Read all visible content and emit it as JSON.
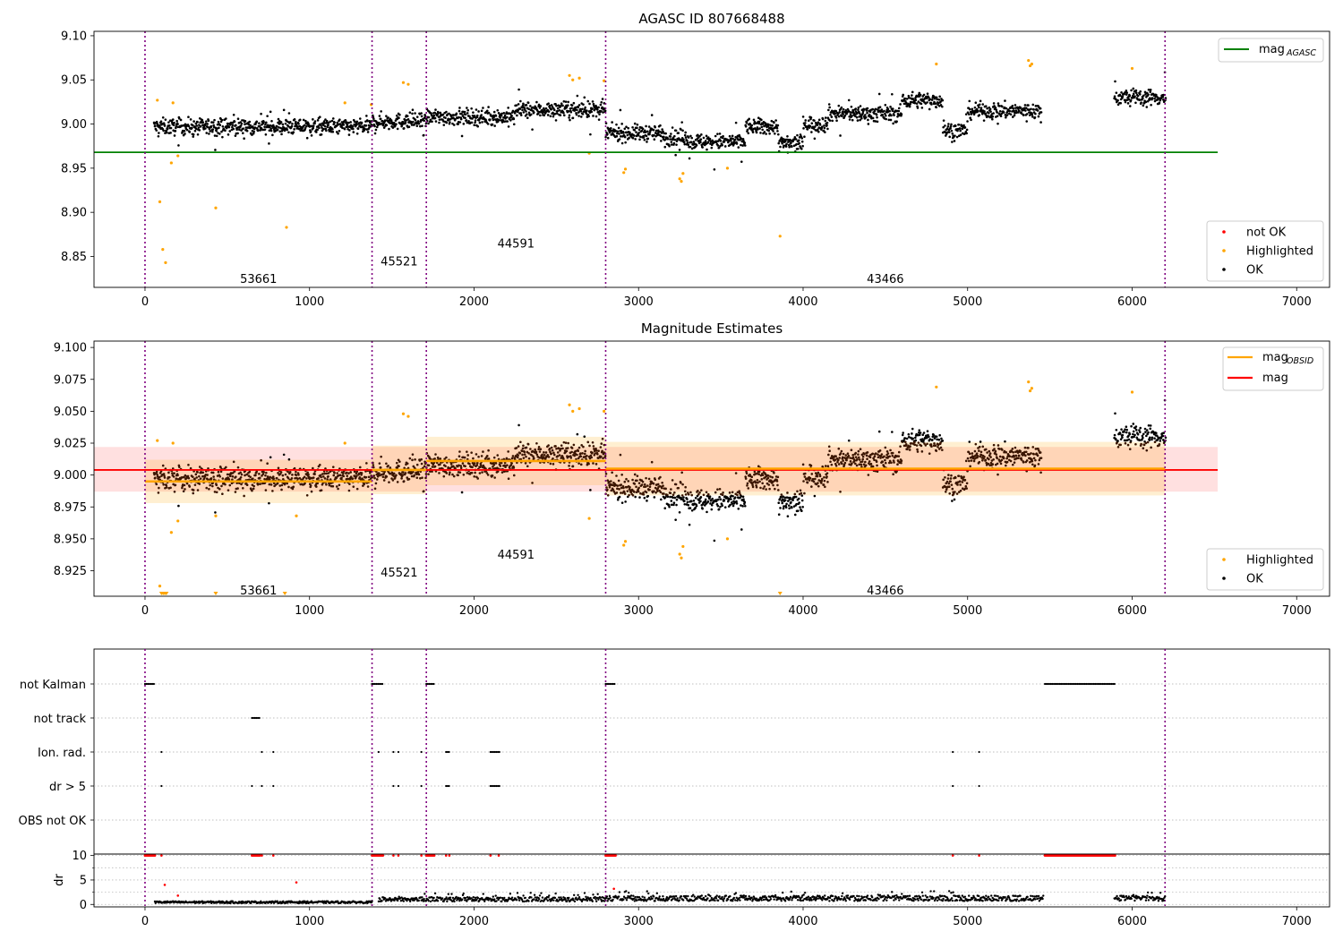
{
  "chart_data": [
    {
      "panel": "top",
      "type": "scatter",
      "title": "AGASC ID 807668488",
      "xlim": [
        -310,
        7200
      ],
      "ylim": [
        8.815,
        9.105
      ],
      "xticks": [
        0,
        1000,
        2000,
        3000,
        4000,
        5000,
        6000,
        7000
      ],
      "yticks": [
        8.85,
        8.9,
        8.95,
        9.0,
        9.05,
        9.1
      ],
      "ytick_labels": [
        "8.85",
        "8.90",
        "8.95",
        "9.00",
        "9.05",
        "9.10"
      ],
      "obsid_boundaries": [
        0,
        1380,
        1710,
        2800,
        6200
      ],
      "obsid_labels": [
        {
          "text": "53661",
          "x": 690,
          "y": 8.825
        },
        {
          "text": "45521",
          "x": 1545,
          "y": 8.845
        },
        {
          "text": "44591",
          "x": 2255,
          "y": 8.865
        },
        {
          "text": "43466",
          "x": 4500,
          "y": 8.825
        }
      ],
      "lines": [
        {
          "name": "mag_AGASC",
          "color": "#008000",
          "y": 8.968,
          "x": [
            -310,
            6520
          ]
        }
      ],
      "legend_lines": [
        {
          "main": "mag",
          "sub": "AGASC",
          "color": "#008000"
        }
      ],
      "legend_points": [
        {
          "label": "not OK",
          "color": "#ff0000"
        },
        {
          "label": "Highlighted",
          "color": "#ffa500"
        },
        {
          "label": "OK",
          "color": "#000000"
        }
      ],
      "highlighted": [
        [
          75,
          9.027
        ],
        [
          90,
          8.912
        ],
        [
          108,
          8.858
        ],
        [
          125,
          8.843
        ],
        [
          160,
          8.956
        ],
        [
          170,
          9.024
        ],
        [
          200,
          8.964
        ],
        [
          430,
          8.905
        ],
        [
          860,
          8.883
        ],
        [
          1215,
          9.024
        ],
        [
          1375,
          9.022
        ],
        [
          1570,
          9.047
        ],
        [
          1600,
          9.045
        ],
        [
          2580,
          9.055
        ],
        [
          2600,
          9.05
        ],
        [
          2640,
          9.052
        ],
        [
          2700,
          8.967
        ],
        [
          2790,
          9.049
        ],
        [
          2910,
          8.945
        ],
        [
          2920,
          8.949
        ],
        [
          3250,
          8.938
        ],
        [
          3260,
          8.935
        ],
        [
          3270,
          8.944
        ],
        [
          3540,
          8.95
        ],
        [
          3860,
          8.873
        ],
        [
          4810,
          9.068
        ],
        [
          5370,
          9.072
        ],
        [
          5380,
          9.066
        ],
        [
          5390,
          9.068
        ],
        [
          6000,
          9.063
        ]
      ]
    },
    {
      "panel": "middle",
      "type": "scatter",
      "title": "Magnitude Estimates",
      "xlim": [
        -310,
        7200
      ],
      "ylim": [
        8.905,
        9.105
      ],
      "xticks": [
        0,
        1000,
        2000,
        3000,
        4000,
        5000,
        6000,
        7000
      ],
      "yticks": [
        8.925,
        8.95,
        8.975,
        9.0,
        9.025,
        9.05,
        9.075,
        9.1
      ],
      "ytick_labels": [
        "8.925",
        "8.950",
        "8.975",
        "9.000",
        "9.025",
        "9.050",
        "9.075",
        "9.100"
      ],
      "obsid_boundaries": [
        0,
        1380,
        1710,
        2800,
        6200
      ],
      "obsid_labels": [
        {
          "text": "53661",
          "x": 690,
          "y": 8.91
        },
        {
          "text": "45521",
          "x": 1545,
          "y": 8.924
        },
        {
          "text": "44591",
          "x": 2255,
          "y": 8.938
        },
        {
          "text": "43466",
          "x": 4500,
          "y": 8.91
        }
      ],
      "mag": {
        "y": 9.004,
        "band": [
          8.987,
          9.022
        ],
        "x": [
          -310,
          6520
        ],
        "color": "#ff0000"
      },
      "mag_obsid": [
        {
          "x": [
            0,
            1380
          ],
          "y": 8.995,
          "band": [
            8.978,
            9.012
          ]
        },
        {
          "x": [
            1380,
            1710
          ],
          "y": 9.004,
          "band": [
            8.985,
            9.023
          ]
        },
        {
          "x": [
            1710,
            2800
          ],
          "y": 9.011,
          "band": [
            8.992,
            9.03
          ]
        },
        {
          "x": [
            2800,
            6200
          ],
          "y": 9.005,
          "band": [
            8.984,
            9.026
          ]
        }
      ],
      "legend_lines": [
        {
          "main": "mag",
          "sub": "OBSID",
          "color": "#ffa500"
        },
        {
          "main": "mag",
          "sub": "",
          "color": "#ff0000"
        }
      ],
      "legend_points": [
        {
          "label": "Highlighted",
          "color": "#ffa500"
        },
        {
          "label": "OK",
          "color": "#000000"
        }
      ],
      "highlighted": [
        [
          75,
          9.027
        ],
        [
          90,
          8.913
        ],
        [
          160,
          8.955
        ],
        [
          170,
          9.025
        ],
        [
          200,
          8.964
        ],
        [
          430,
          8.968
        ],
        [
          920,
          8.968
        ],
        [
          1215,
          9.025
        ],
        [
          1570,
          9.048
        ],
        [
          1600,
          9.046
        ],
        [
          2580,
          9.055
        ],
        [
          2600,
          9.05
        ],
        [
          2640,
          9.052
        ],
        [
          2700,
          8.966
        ],
        [
          2790,
          9.05
        ],
        [
          2910,
          8.945
        ],
        [
          2920,
          8.948
        ],
        [
          3250,
          8.938
        ],
        [
          3260,
          8.935
        ],
        [
          3270,
          8.944
        ],
        [
          3540,
          8.95
        ],
        [
          4810,
          9.069
        ],
        [
          5370,
          9.073
        ],
        [
          5380,
          9.066
        ],
        [
          5390,
          9.068
        ],
        [
          6000,
          9.065
        ]
      ],
      "clipped_markers": [
        100,
        110,
        120,
        130,
        430,
        850,
        3860
      ]
    },
    {
      "panel": "flags",
      "type": "scatter",
      "xlim": [
        -310,
        7200
      ],
      "categories": [
        "not Kalman",
        "not track",
        "Ion. rad.",
        "dr > 5",
        "OBS not OK"
      ],
      "flag_points": {
        "not Kalman": [
          [
            0,
            60
          ],
          [
            1380,
            1450
          ],
          [
            1710,
            1760
          ],
          [
            2800,
            2860
          ],
          [
            5470,
            5900
          ]
        ],
        "not track": [
          [
            650,
            700
          ]
        ],
        "Ion. rad.": [
          [
            100
          ],
          [
            710
          ],
          [
            780
          ],
          [
            1420
          ],
          [
            1510
          ],
          [
            1540
          ],
          [
            1680
          ],
          [
            1830,
            1850
          ],
          [
            2100,
            2160
          ],
          [
            4910
          ],
          [
            5070
          ]
        ],
        "dr > 5": [
          [
            100
          ],
          [
            650
          ],
          [
            710
          ],
          [
            780
          ],
          [
            1510
          ],
          [
            1540
          ],
          [
            1680
          ],
          [
            1830,
            1850
          ],
          [
            2100,
            2160
          ],
          [
            4910
          ],
          [
            5070
          ]
        ],
        "OBS not OK": []
      }
    },
    {
      "panel": "dr",
      "type": "scatter",
      "ylabel": "dr",
      "xlim": [
        -310,
        7200
      ],
      "ylim": [
        -0.5,
        10.3
      ],
      "xticks": [
        0,
        1000,
        2000,
        3000,
        4000,
        5000,
        6000,
        7000
      ],
      "yticks": [
        0,
        5,
        10
      ],
      "ytick_labels": [
        "0",
        "5",
        "10"
      ],
      "red_clusters": [
        [
          0,
          60
        ],
        [
          650,
          700
        ],
        [
          1380,
          1450
        ],
        [
          1710,
          1760
        ],
        [
          2800,
          2860
        ],
        [
          5470,
          5900
        ]
      ],
      "red_singles": [
        [
          100,
          10
        ],
        [
          710,
          10
        ],
        [
          780,
          10
        ],
        [
          1510,
          10
        ],
        [
          1540,
          10
        ],
        [
          1680,
          10
        ],
        [
          1830,
          10
        ],
        [
          1850,
          10
        ],
        [
          2100,
          10
        ],
        [
          2150,
          10
        ],
        [
          4910,
          10
        ],
        [
          5070,
          10
        ],
        [
          120,
          4.0
        ],
        [
          920,
          4.5
        ],
        [
          200,
          1.8
        ],
        [
          2850,
          3.2
        ]
      ]
    }
  ]
}
